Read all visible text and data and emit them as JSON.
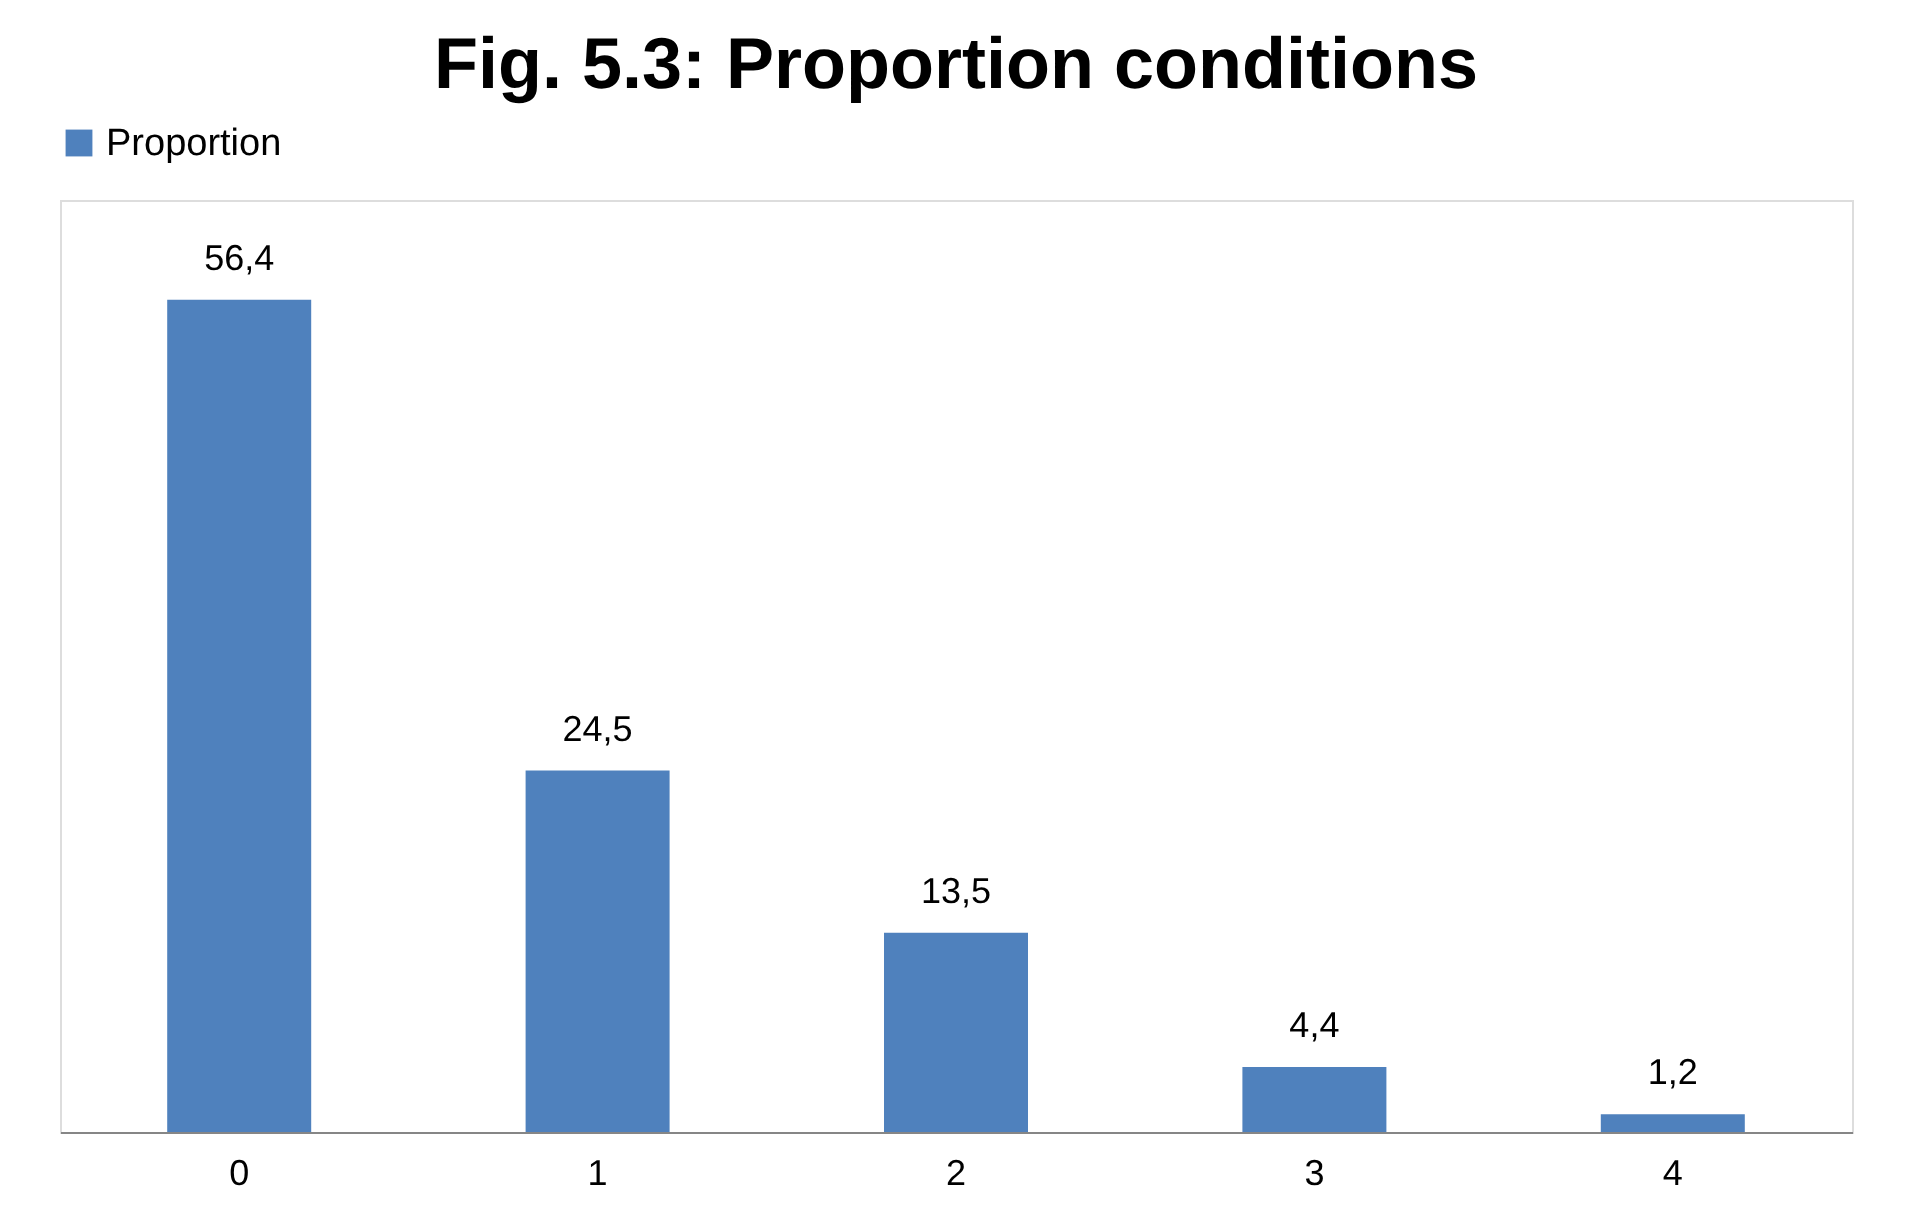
{
  "chart_data": {
    "type": "bar",
    "title": "Fig. 5.3: Proportion conditions",
    "categories": [
      "0",
      "1",
      "2",
      "3",
      "4"
    ],
    "series": [
      {
        "name": "Proportion",
        "color": "#4f81bd",
        "values": [
          56.4,
          24.5,
          13.5,
          4.4,
          1.2
        ],
        "value_labels": [
          "56,4",
          "24,5",
          "13,5",
          "4,4",
          "1,2"
        ]
      }
    ],
    "legend": "top",
    "grid": false
  }
}
